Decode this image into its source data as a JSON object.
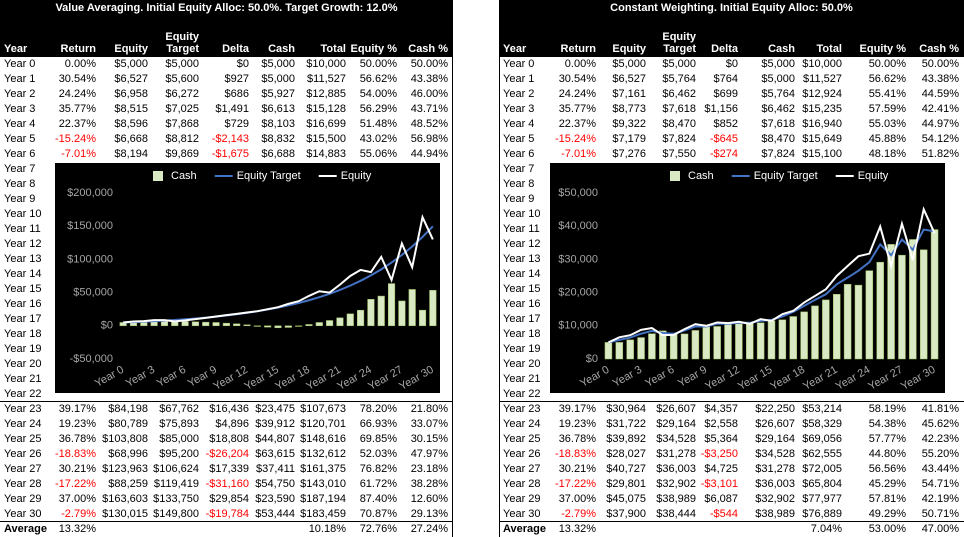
{
  "tables": [
    {
      "title": "Value Averaging. Initial Equity Alloc: 50.0%. Target Growth: 12.0%",
      "header": [
        "Year",
        "Return",
        "Equity",
        "Equity Target",
        "Delta",
        "Cash",
        "Total",
        "Equity %",
        "Cash %"
      ],
      "rows": [
        [
          "Year 0",
          "0.00%",
          "$5,000",
          "$5,000",
          "$0",
          "$5,000",
          "$10,000",
          "50.00%",
          "50.00%"
        ],
        [
          "Year 1",
          "30.54%",
          "$6,527",
          "$5,600",
          "$927",
          "$5,000",
          "$11,527",
          "56.62%",
          "43.38%"
        ],
        [
          "Year 2",
          "24.24%",
          "$6,958",
          "$6,272",
          "$686",
          "$5,927",
          "$12,885",
          "54.00%",
          "46.00%"
        ],
        [
          "Year 3",
          "35.77%",
          "$8,515",
          "$7,025",
          "$1,491",
          "$6,613",
          "$15,128",
          "56.29%",
          "43.71%"
        ],
        [
          "Year 4",
          "22.37%",
          "$8,596",
          "$7,868",
          "$729",
          "$8,103",
          "$16,699",
          "51.48%",
          "48.52%"
        ],
        [
          "Year 5",
          "-15.24%",
          "$6,668",
          "$8,812",
          "-$2,143",
          "$8,832",
          "$15,500",
          "43.02%",
          "56.98%"
        ],
        [
          "Year 6",
          "-7.01%",
          "$8,194",
          "$9,869",
          "-$1,675",
          "$6,688",
          "$14,883",
          "55.06%",
          "44.94%"
        ],
        [
          "Year 7"
        ],
        [
          "Year 8"
        ],
        [
          "Year 9"
        ],
        [
          "Year 10"
        ],
        [
          "Year 11"
        ],
        [
          "Year 12"
        ],
        [
          "Year 13"
        ],
        [
          "Year 14"
        ],
        [
          "Year 15"
        ],
        [
          "Year 16"
        ],
        [
          "Year 17"
        ],
        [
          "Year 18"
        ],
        [
          "Year 19"
        ],
        [
          "Year 20"
        ],
        [
          "Year 21"
        ],
        [
          "Year 22"
        ],
        [
          "Year 23",
          "39.17%",
          "$84,198",
          "$67,762",
          "$16,436",
          "$23,475",
          "$107,673",
          "78.20%",
          "21.80%"
        ],
        [
          "Year 24",
          "19.23%",
          "$80,789",
          "$75,893",
          "$4,896",
          "$39,912",
          "$120,701",
          "66.93%",
          "33.07%"
        ],
        [
          "Year 25",
          "36.78%",
          "$103,808",
          "$85,000",
          "$18,808",
          "$44,807",
          "$148,616",
          "69.85%",
          "30.15%"
        ],
        [
          "Year 26",
          "-18.83%",
          "$68,996",
          "$95,200",
          "-$26,204",
          "$63,615",
          "$132,612",
          "52.03%",
          "47.97%"
        ],
        [
          "Year 27",
          "30.21%",
          "$123,963",
          "$106,624",
          "$17,339",
          "$37,411",
          "$161,375",
          "76.82%",
          "23.18%"
        ],
        [
          "Year 28",
          "-17.22%",
          "$88,259",
          "$119,419",
          "-$31,160",
          "$54,750",
          "$143,010",
          "61.72%",
          "38.28%"
        ],
        [
          "Year 29",
          "37.00%",
          "$163,603",
          "$133,750",
          "$29,854",
          "$23,590",
          "$187,194",
          "87.40%",
          "12.60%"
        ],
        [
          "Year 30",
          "-2.79%",
          "$130,015",
          "$149,800",
          "-$19,784",
          "$53,444",
          "$183,459",
          "70.87%",
          "29.13%"
        ]
      ],
      "average": {
        "year": "Average",
        "return": "13.32%",
        "total": "10.18%",
        "equity_pct": "72.76%",
        "cash_pct": "27.24%"
      }
    },
    {
      "title": "Constant Weighting. Initial Equity Alloc: 50.0%",
      "header": [
        "Year",
        "Return",
        "Equity",
        "Equity Target",
        "Delta",
        "Cash",
        "Total",
        "Equity %",
        "Cash %"
      ],
      "rows": [
        [
          "Year 0",
          "0.00%",
          "$5,000",
          "$5,000",
          "$0",
          "$5,000",
          "$10,000",
          "50.00%",
          "50.00%"
        ],
        [
          "Year 1",
          "30.54%",
          "$6,527",
          "$5,764",
          "$764",
          "$5,000",
          "$11,527",
          "56.62%",
          "43.38%"
        ],
        [
          "Year 2",
          "24.24%",
          "$7,161",
          "$6,462",
          "$699",
          "$5,764",
          "$12,924",
          "55.41%",
          "44.59%"
        ],
        [
          "Year 3",
          "35.77%",
          "$8,773",
          "$7,618",
          "$1,156",
          "$6,462",
          "$15,235",
          "57.59%",
          "42.41%"
        ],
        [
          "Year 4",
          "22.37%",
          "$9,322",
          "$8,470",
          "$852",
          "$7,618",
          "$16,940",
          "55.03%",
          "44.97%"
        ],
        [
          "Year 5",
          "-15.24%",
          "$7,179",
          "$7,824",
          "-$645",
          "$8,470",
          "$15,649",
          "45.88%",
          "54.12%"
        ],
        [
          "Year 6",
          "-7.01%",
          "$7,276",
          "$7,550",
          "-$274",
          "$7,824",
          "$15,100",
          "48.18%",
          "51.82%"
        ],
        [
          "Year 7"
        ],
        [
          "Year 8"
        ],
        [
          "Year 9"
        ],
        [
          "Year 10"
        ],
        [
          "Year 11"
        ],
        [
          "Year 12"
        ],
        [
          "Year 13"
        ],
        [
          "Year 14"
        ],
        [
          "Year 15"
        ],
        [
          "Year 16"
        ],
        [
          "Year 17"
        ],
        [
          "Year 18"
        ],
        [
          "Year 19"
        ],
        [
          "Year 20"
        ],
        [
          "Year 21"
        ],
        [
          "Year 22"
        ],
        [
          "Year 23",
          "39.17%",
          "$30,964",
          "$26,607",
          "$4,357",
          "$22,250",
          "$53,214",
          "58.19%",
          "41.81%"
        ],
        [
          "Year 24",
          "19.23%",
          "$31,722",
          "$29,164",
          "$2,558",
          "$26,607",
          "$58,329",
          "54.38%",
          "45.62%"
        ],
        [
          "Year 25",
          "36.78%",
          "$39,892",
          "$34,528",
          "$5,364",
          "$29,164",
          "$69,056",
          "57.77%",
          "42.23%"
        ],
        [
          "Year 26",
          "-18.83%",
          "$28,027",
          "$31,278",
          "-$3,250",
          "$34,528",
          "$62,555",
          "44.80%",
          "55.20%"
        ],
        [
          "Year 27",
          "30.21%",
          "$40,727",
          "$36,003",
          "$4,725",
          "$31,278",
          "$72,005",
          "56.56%",
          "43.44%"
        ],
        [
          "Year 28",
          "-17.22%",
          "$29,801",
          "$32,902",
          "-$3,101",
          "$36,003",
          "$65,804",
          "45.29%",
          "54.71%"
        ],
        [
          "Year 29",
          "37.00%",
          "$45,075",
          "$38,989",
          "$6,087",
          "$32,902",
          "$77,977",
          "57.81%",
          "42.19%"
        ],
        [
          "Year 30",
          "-2.79%",
          "$37,900",
          "$38,444",
          "-$544",
          "$38,989",
          "$76,889",
          "49.29%",
          "50.71%"
        ]
      ],
      "average": {
        "year": "Average",
        "return": "13.32%",
        "total": "7.04%",
        "equity_pct": "53.00%",
        "cash_pct": "47.00%"
      }
    }
  ],
  "chart_data": [
    {
      "type": "combo",
      "categories": [
        "Year 0",
        null,
        null,
        "Year 3",
        null,
        null,
        "Year 6",
        null,
        null,
        "Year 9",
        null,
        null,
        "Year 12",
        null,
        null,
        "Year 15",
        null,
        null,
        "Year 18",
        null,
        null,
        "Year 21",
        null,
        null,
        "Year 24",
        null,
        null,
        "Year 27",
        null,
        null,
        "Year 30"
      ],
      "series": [
        {
          "name": "Cash",
          "kind": "bar",
          "color": "#d8e9c4",
          "values": [
            5000,
            5000,
            5927,
            6613,
            8103,
            8832,
            6688,
            6000,
            5500,
            5000,
            4000,
            3000,
            1500,
            -1000,
            -2000,
            -3000,
            -2500,
            -1000,
            2000,
            5000,
            8000,
            12000,
            18000,
            23475,
            39912,
            44807,
            63615,
            37411,
            54750,
            23590,
            53444
          ]
        },
        {
          "name": "Equity Target",
          "kind": "line",
          "color": "#4472c4",
          "values": [
            5000,
            5600,
            6272,
            7025,
            7868,
            8812,
            9869,
            11053,
            12379,
            13865,
            15529,
            17392,
            19479,
            21817,
            24435,
            27367,
            30651,
            34329,
            38449,
            43062,
            48230,
            54017,
            60499,
            67762,
            75893,
            85000,
            95200,
            106624,
            119419,
            133750,
            149800
          ]
        },
        {
          "name": "Equity",
          "kind": "line",
          "color": "#ffffff",
          "values": [
            5000,
            6527,
            6958,
            8515,
            8596,
            6668,
            8194,
            10000,
            12000,
            14000,
            16000,
            18000,
            20000,
            22000,
            25000,
            28000,
            33000,
            37000,
            45000,
            52000,
            50000,
            62000,
            75000,
            84198,
            80789,
            103808,
            68996,
            123963,
            88259,
            163603,
            130015
          ]
        }
      ],
      "ylim": [
        -50000,
        200000
      ],
      "yticks": [
        {
          "value": -50000,
          "label": "-$50,000"
        },
        {
          "value": 0,
          "label": "$0"
        },
        {
          "value": 50000,
          "label": "$50,000"
        },
        {
          "value": 100000,
          "label": "$100,000"
        },
        {
          "value": 150000,
          "label": "$150,000"
        },
        {
          "value": 200000,
          "label": "$200,000"
        }
      ]
    },
    {
      "type": "combo",
      "categories": [
        "Year 0",
        null,
        null,
        "Year 3",
        null,
        null,
        "Year 6",
        null,
        null,
        "Year 9",
        null,
        null,
        "Year 12",
        null,
        null,
        "Year 15",
        null,
        null,
        "Year 18",
        null,
        null,
        "Year 21",
        null,
        null,
        "Year 24",
        null,
        null,
        "Year 27",
        null,
        null,
        "Year 30"
      ],
      "series": [
        {
          "name": "Cash",
          "kind": "bar",
          "color": "#d8e9c4",
          "values": [
            5000,
            5000,
            5764,
            6462,
            7618,
            8470,
            7824,
            7550,
            8600,
            9800,
            9800,
            10600,
            10600,
            10900,
            10900,
            11500,
            11800,
            12800,
            14200,
            16000,
            17800,
            19500,
            22500,
            22250,
            26607,
            29164,
            34528,
            31278,
            36003,
            32902,
            38989
          ]
        },
        {
          "name": "Equity Target",
          "kind": "line",
          "color": "#4472c4",
          "values": [
            5000,
            5764,
            6462,
            7618,
            8470,
            7824,
            7550,
            8600,
            9800,
            9800,
            10600,
            10600,
            10900,
            10900,
            11500,
            11800,
            12800,
            14200,
            16000,
            17800,
            19500,
            22500,
            24500,
            26607,
            29164,
            34528,
            31278,
            36003,
            32902,
            38989,
            38444
          ]
        },
        {
          "name": "Equity",
          "kind": "line",
          "color": "#ffffff",
          "values": [
            5000,
            6527,
            7161,
            8773,
            9322,
            7179,
            7276,
            9000,
            10500,
            10000,
            11000,
            10800,
            11200,
            10600,
            12000,
            11500,
            13500,
            14500,
            17000,
            19000,
            21000,
            25000,
            28000,
            30964,
            31722,
            39892,
            28027,
            40727,
            29801,
            45075,
            37900
          ]
        }
      ],
      "ylim": [
        0,
        50000
      ],
      "yticks": [
        {
          "value": 0,
          "label": "$0"
        },
        {
          "value": 10000,
          "label": "$10,000"
        },
        {
          "value": 20000,
          "label": "$20,000"
        },
        {
          "value": 30000,
          "label": "$30,000"
        },
        {
          "value": 40000,
          "label": "$40,000"
        },
        {
          "value": 50000,
          "label": "$50,000"
        }
      ]
    }
  ]
}
